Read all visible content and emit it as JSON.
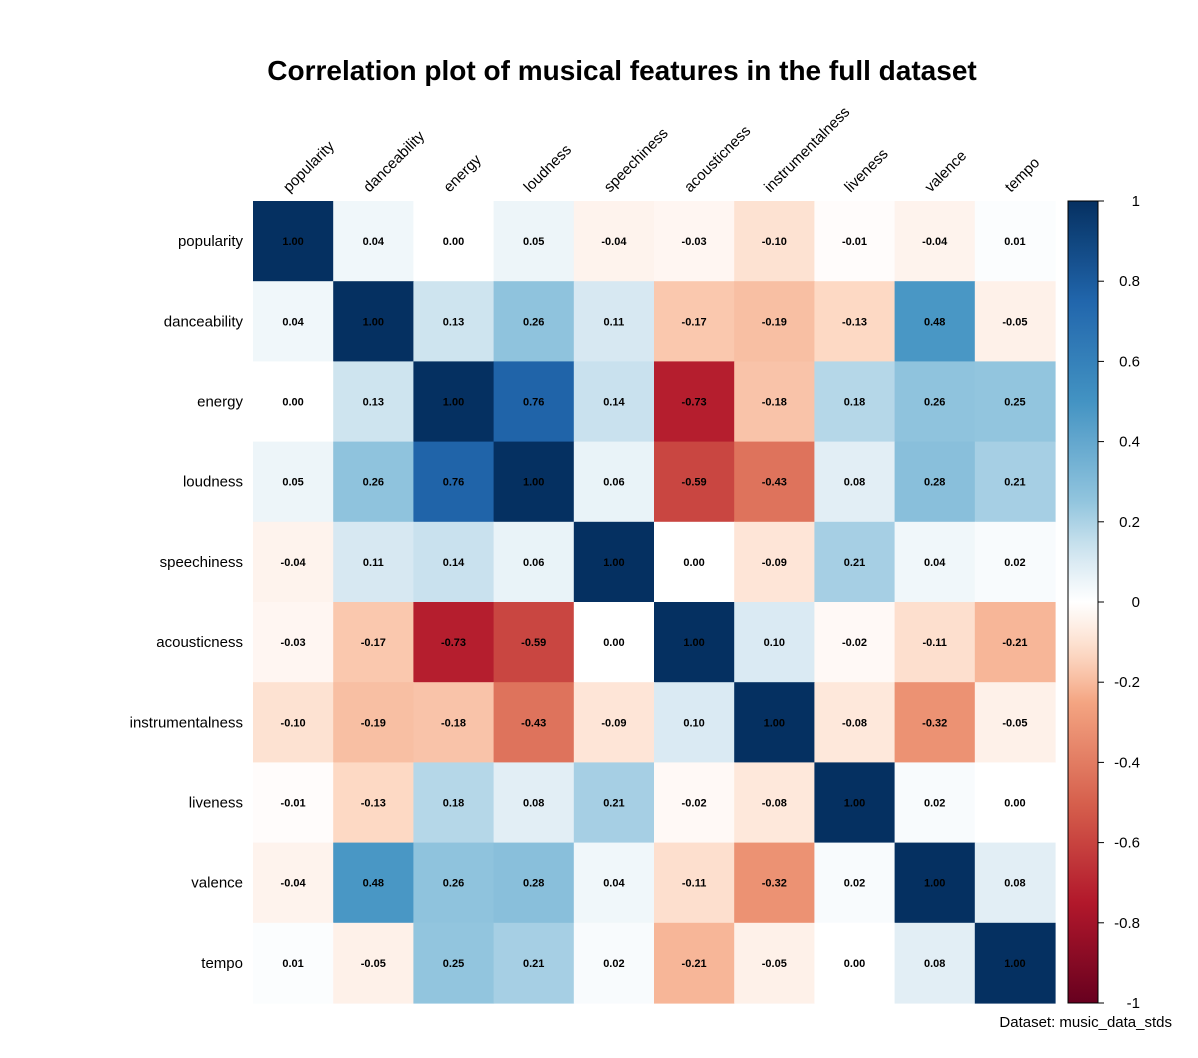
{
  "chart_data": {
    "type": "heatmap",
    "title": "Correlation plot of musical features in the full dataset",
    "caption": "Dataset: music_data_stds",
    "variables": [
      "popularity",
      "danceability",
      "energy",
      "loudness",
      "speechiness",
      "acousticness",
      "instrumentalness",
      "liveness",
      "valence",
      "tempo"
    ],
    "values": [
      [
        1.0,
        0.04,
        0.0,
        0.05,
        -0.04,
        -0.03,
        -0.1,
        -0.01,
        -0.04,
        0.01
      ],
      [
        0.04,
        1.0,
        0.13,
        0.26,
        0.11,
        -0.17,
        -0.19,
        -0.13,
        0.48,
        -0.05
      ],
      [
        0.0,
        0.13,
        1.0,
        0.76,
        0.14,
        -0.73,
        -0.18,
        0.18,
        0.26,
        0.25
      ],
      [
        0.05,
        0.26,
        0.76,
        1.0,
        0.06,
        -0.59,
        -0.43,
        0.08,
        0.28,
        0.21
      ],
      [
        -0.04,
        0.11,
        0.14,
        0.06,
        1.0,
        0.0,
        -0.09,
        0.21,
        0.04,
        0.02
      ],
      [
        -0.03,
        -0.17,
        -0.73,
        -0.59,
        0.0,
        1.0,
        0.1,
        -0.02,
        -0.11,
        -0.21
      ],
      [
        -0.1,
        -0.19,
        -0.18,
        -0.43,
        -0.09,
        0.1,
        1.0,
        -0.08,
        -0.32,
        -0.05
      ],
      [
        -0.01,
        -0.13,
        0.18,
        0.08,
        0.21,
        -0.02,
        -0.08,
        1.0,
        0.02,
        0.0
      ],
      [
        -0.04,
        0.48,
        0.26,
        0.28,
        0.04,
        -0.11,
        -0.32,
        0.02,
        1.0,
        0.08
      ],
      [
        0.01,
        -0.05,
        0.25,
        0.21,
        0.02,
        -0.21,
        -0.05,
        0.0,
        0.08,
        1.0
      ]
    ],
    "color_range": [
      -1,
      1
    ],
    "colorbar_ticks": [
      "1",
      "0.8",
      "0.6",
      "0.4",
      "0.2",
      "0",
      "-0.2",
      "-0.4",
      "-0.6",
      "-0.8",
      "-1"
    ],
    "colorbar_tick_values": [
      1,
      0.8,
      0.6,
      0.4,
      0.2,
      0,
      -0.2,
      -0.4,
      -0.6,
      -0.8,
      -1
    ],
    "colors": {
      "negative_end": "#67001f",
      "mid": "#ffffff",
      "positive_end": "#053061"
    },
    "legend_position": "right",
    "grid": false
  }
}
